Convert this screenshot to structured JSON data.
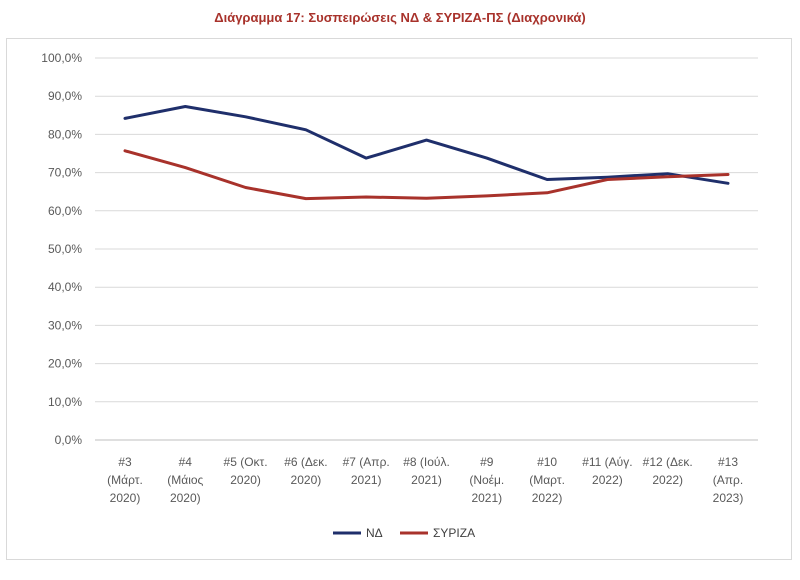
{
  "chart_data": {
    "type": "line",
    "title": "Διάγραμμα 17: Συσπειρώσεις ΝΔ & ΣΥΡΙΖΑ-ΠΣ (Διαχρονικά)",
    "categories": [
      [
        "#3",
        "(Μάρτ.",
        "2020)"
      ],
      [
        "#4",
        "(Μάιος",
        "2020)"
      ],
      [
        "#5 (Οκτ.",
        "2020)"
      ],
      [
        "#6 (Δεκ.",
        "2020)"
      ],
      [
        "#7 (Απρ.",
        "2021)"
      ],
      [
        "#8 (Ιούλ.",
        "2021)"
      ],
      [
        "#9",
        "(Νοέμ.",
        "2021)"
      ],
      [
        "#10",
        "(Μαρτ.",
        "2022)"
      ],
      [
        "#11 (Αύγ.",
        "2022)"
      ],
      [
        "#12 (Δεκ.",
        "2022)"
      ],
      [
        "#13",
        "(Απρ.",
        "2023)"
      ]
    ],
    "series": [
      {
        "name": "ΝΔ",
        "color": "#1f2f6b",
        "values": [
          84.2,
          87.3,
          84.6,
          81.2,
          73.8,
          78.5,
          73.8,
          68.2,
          68.8,
          69.7,
          67.2
        ]
      },
      {
        "name": "ΣΥΡΙΖΑ",
        "color": "#a8322b",
        "values": [
          75.7,
          71.3,
          66.1,
          63.2,
          63.6,
          63.3,
          63.9,
          64.7,
          68.2,
          68.9,
          69.5
        ]
      }
    ],
    "yticks": [
      "0,0%",
      "10,0%",
      "20,0%",
      "30,0%",
      "40,0%",
      "50,0%",
      "60,0%",
      "70,0%",
      "80,0%",
      "90,0%",
      "100,0%"
    ],
    "ylim": [
      0,
      100
    ],
    "grid": true,
    "legend": "bottom"
  }
}
